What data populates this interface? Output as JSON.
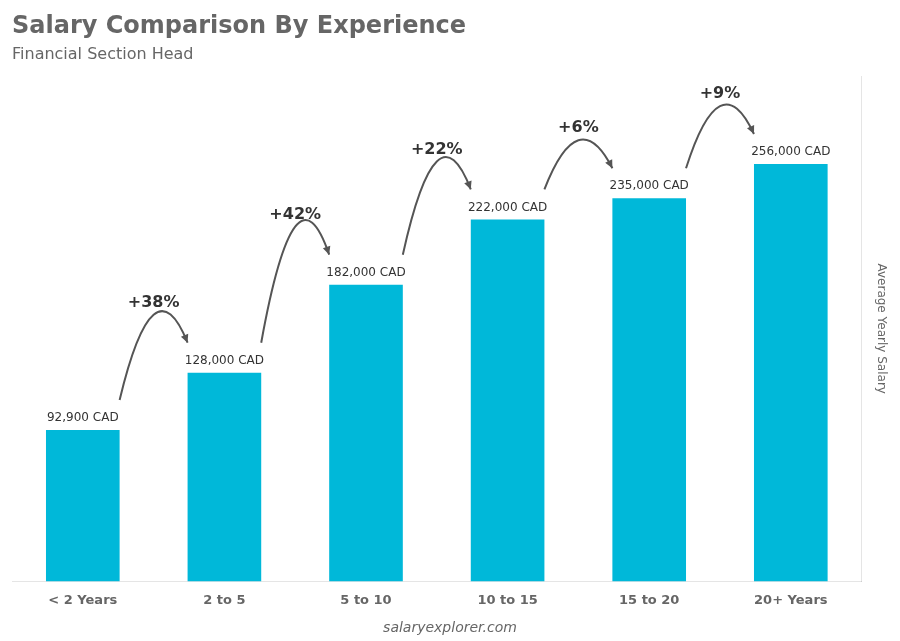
{
  "chart_data": {
    "type": "bar",
    "title": "Salary Comparison By Experience",
    "subtitle": "Financial Section Head",
    "categories": [
      "< 2 Years",
      "2 to 5",
      "5 to 10",
      "10 to 15",
      "15 to 20",
      "20+ Years"
    ],
    "values": [
      92900,
      128000,
      182000,
      222000,
      235000,
      256000
    ],
    "value_labels": [
      "92,900 CAD",
      "128,000 CAD",
      "182,000 CAD",
      "222,000 CAD",
      "235,000 CAD",
      "256,000 CAD"
    ],
    "data_labels": true,
    "color": "#00b8d9",
    "ylabel": "Average Yearly Salary",
    "ylim": [
      0,
      310000
    ],
    "grid": false,
    "tick_labels": "x",
    "annotations": [
      {
        "text": "+38%",
        "between": [
          "< 2 Years",
          "2 to 5"
        ]
      },
      {
        "text": "+42%",
        "between": [
          "2 to 5",
          "5 to 10"
        ]
      },
      {
        "text": "+22%",
        "between": [
          "5 to 10",
          "10 to 15"
        ]
      },
      {
        "text": "+6%",
        "between": [
          "10 to 15",
          "15 to 20"
        ]
      },
      {
        "text": "+9%",
        "between": [
          "15 to 20",
          "20+ Years"
        ]
      }
    ],
    "footer": "salaryexplorer.com"
  }
}
